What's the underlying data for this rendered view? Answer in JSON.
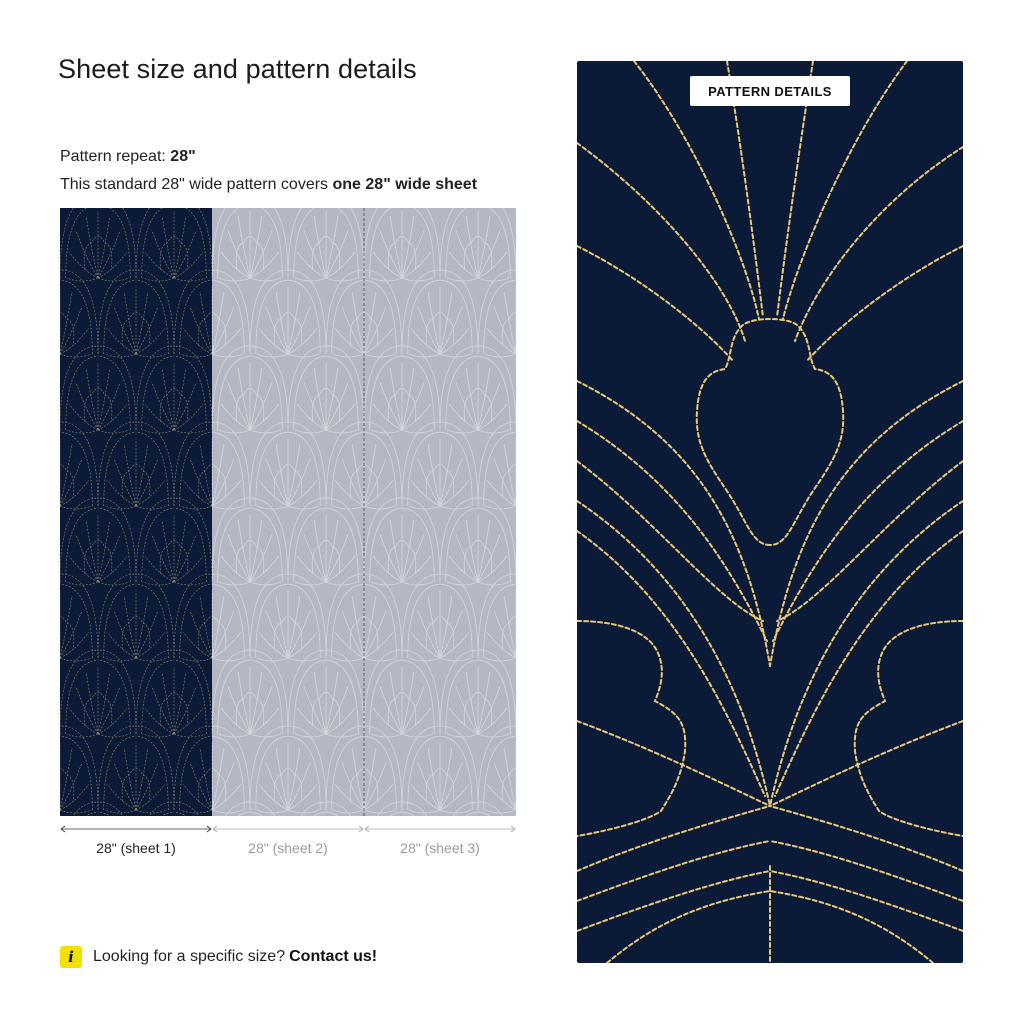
{
  "page": {
    "title": "Sheet size and pattern details"
  },
  "repeat": {
    "label": "Pattern repeat:",
    "value": "28\""
  },
  "coverage": {
    "prefix": "This standard 28\" wide pattern covers",
    "emphasis": "one 28\" wide sheet"
  },
  "sheets": [
    {
      "label": "28\" (sheet 1)",
      "active": true
    },
    {
      "label": "28\" (sheet 2)",
      "active": false
    },
    {
      "label": "28\" (sheet 3)",
      "active": false
    }
  ],
  "footer": {
    "icon": "info-icon",
    "text": "Looking for a specific size?",
    "link": "Contact us!"
  },
  "detail": {
    "button_label": "PATTERN DETAILS"
  },
  "colors": {
    "navy": "#0b1a36",
    "muted_sheet": "#b3b8c2",
    "stitch_gold": "#e9c87a",
    "info_yellow": "#f5e100"
  }
}
